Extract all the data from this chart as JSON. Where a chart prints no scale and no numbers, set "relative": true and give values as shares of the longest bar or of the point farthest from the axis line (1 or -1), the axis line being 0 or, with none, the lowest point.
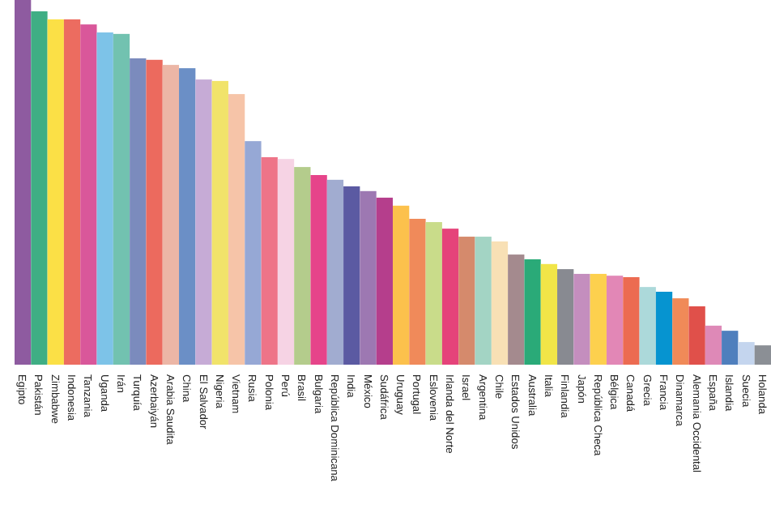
{
  "chart_data": {
    "type": "bar",
    "relative": true,
    "categories": [
      "Egipto",
      "Pakistán",
      "Zimbabwe",
      "Indonesia",
      "Tanzania",
      "Uganda",
      "Irán",
      "Turquía",
      "Azerbaiyán",
      "Arabia Saudita",
      "China",
      "El Salvador",
      "Nigeria",
      "Vietnam",
      "Rusia",
      "Polonia",
      "Perú",
      "Brasil",
      "Bulgaria",
      "República Dominicana",
      "India",
      "México",
      "Sudáfrica",
      "Uruguay",
      "Portugal",
      "Eslovenia",
      "Irlanda del Norte",
      "Israel",
      "Argentina",
      "Chile",
      "Estados Unidos",
      "Australia",
      "Italia",
      "Finlandia",
      "Japón",
      "República Checa",
      "Bélgica",
      "Canadá",
      "Grecia",
      "Francia",
      "Dinamarca",
      "Alemania Occidental",
      "España",
      "Islandia",
      "Suecia",
      "Holanda"
    ],
    "values": [
      1.0,
      0.969,
      0.947,
      0.947,
      0.933,
      0.911,
      0.907,
      0.84,
      0.836,
      0.822,
      0.813,
      0.782,
      0.778,
      0.742,
      0.613,
      0.569,
      0.564,
      0.542,
      0.52,
      0.507,
      0.489,
      0.476,
      0.458,
      0.436,
      0.4,
      0.391,
      0.373,
      0.351,
      0.351,
      0.338,
      0.302,
      0.289,
      0.276,
      0.262,
      0.249,
      0.249,
      0.244,
      0.24,
      0.213,
      0.2,
      0.182,
      0.16,
      0.107,
      0.093,
      0.062,
      0.053
    ],
    "colors": [
      "#8e5ba0",
      "#3fae84",
      "#fbe046",
      "#ec6c60",
      "#d9579a",
      "#7dc3e8",
      "#72c2b0",
      "#7b8bbd",
      "#ec6a5e",
      "#ecb6a6",
      "#6b8fc6",
      "#c6abd6",
      "#f1e36a",
      "#f6c4a8",
      "#96a8d5",
      "#ee7488",
      "#f6d3e4",
      "#b4cc8c",
      "#e6448a",
      "#a1acd0",
      "#5b5aa2",
      "#9d78b2",
      "#b53e8c",
      "#fcc14c",
      "#f08a5a",
      "#c9dc8a",
      "#e5437a",
      "#d58a6c",
      "#a3d4c4",
      "#f8e0b5",
      "#a48a8e",
      "#2aaa78",
      "#f1e548",
      "#888a91",
      "#c48ebe",
      "#fdd04e",
      "#e287b6",
      "#ec6b51",
      "#acd9da",
      "#0694d0",
      "#f08a58",
      "#e0504a",
      "#de89b7",
      "#4f7fbd",
      "#c4d5ee",
      "#8b8f95"
    ],
    "orientation": "vertical"
  }
}
